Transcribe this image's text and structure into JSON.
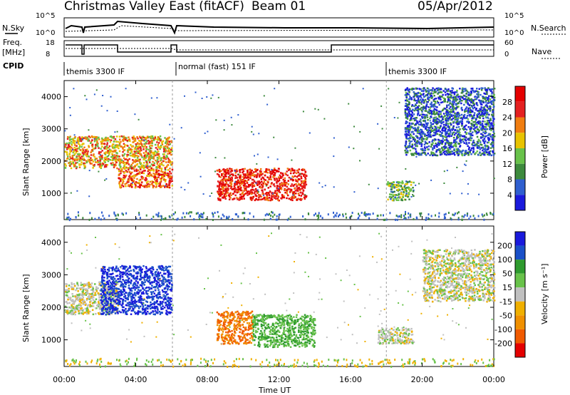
{
  "header": {
    "title": "Christmas Valley East (fitACF)",
    "beam": "Beam 01",
    "date": "05/Apr/2012"
  },
  "panels": {
    "nsky_label": "N.Sky",
    "nsearch_label": "N.Search",
    "freq_label_1": "Freq.",
    "freq_label_2": "[MHz]",
    "nave_label": "Nave",
    "cpid_label": "CPID",
    "nsky_ticks": [
      "10^5",
      "10^0"
    ],
    "nsearch_ticks": [
      "10^5",
      "10^0"
    ],
    "freq_ticks": [
      "18",
      "8"
    ],
    "nave_ticks": [
      "60",
      "0"
    ]
  },
  "cpid": [
    {
      "label": "themis 3300 IF",
      "start_hour": 0.0,
      "end_hour": 6.05
    },
    {
      "label": "normal (fast) 151 IF",
      "start_hour": 6.05,
      "end_hour": 18.0
    },
    {
      "label": "themis 3300 IF",
      "start_hour": 18.0,
      "end_hour": 24.0
    }
  ],
  "power_colorbar": {
    "label": "Power [dB]",
    "ticks": [
      "4",
      "8",
      "12",
      "16",
      "20",
      "24",
      "28"
    ],
    "colors": [
      "#1a1adc",
      "#2f5fcf",
      "#3d8a3d",
      "#68c24a",
      "#e8c300",
      "#f07d10",
      "#e42020",
      "#e40000"
    ]
  },
  "velocity_colorbar": {
    "label": "Velocity [m s⁻¹]",
    "ticks": [
      "-200",
      "-100",
      "-50",
      "-15",
      "15",
      "50",
      "100",
      "200"
    ],
    "colors": [
      "#e40000",
      "#f05a00",
      "#f09000",
      "#f0b000",
      "#c0c0c0",
      "#68c24a",
      "#2e9a2e",
      "#1a50c8",
      "#1a1adc"
    ]
  },
  "chart_data": [
    {
      "type": "heatmap",
      "title": "",
      "xlabel": "Time UT",
      "ylabel": "Slant Range [km]",
      "xlim": [
        "00:00",
        "24:00"
      ],
      "ylim": [
        180,
        4500
      ],
      "x_ticks": [
        "00:00",
        "04:00",
        "08:00",
        "12:00",
        "16:00",
        "20:00",
        "00:00"
      ],
      "y_ticks": [
        "1000",
        "2000",
        "3000",
        "4000"
      ],
      "colorbar_label": "Power [dB]",
      "regions": [
        {
          "t0": 0.0,
          "t1": 6.0,
          "r0": 1800,
          "r1": 2800,
          "value": 20
        },
        {
          "t0": 3.0,
          "t1": 6.0,
          "r0": 1200,
          "r1": 1800,
          "value": 24
        },
        {
          "t0": 8.5,
          "t1": 13.5,
          "r0": 800,
          "r1": 1800,
          "value": 28
        },
        {
          "t0": 18.0,
          "t1": 19.5,
          "r0": 800,
          "r1": 1400,
          "value": 12
        },
        {
          "t0": 19.0,
          "t1": 24.0,
          "r0": 2200,
          "r1": 4300,
          "value": 6
        }
      ]
    },
    {
      "type": "heatmap",
      "title": "",
      "xlabel": "Time UT",
      "ylabel": "Slant Range [km]",
      "xlim": [
        "00:00",
        "24:00"
      ],
      "ylim": [
        180,
        4500
      ],
      "x_ticks": [
        "00:00",
        "04:00",
        "08:00",
        "12:00",
        "16:00",
        "20:00",
        "00:00"
      ],
      "y_ticks": [
        "1000",
        "2000",
        "3000",
        "4000"
      ],
      "colorbar_label": "Velocity [m s⁻¹]",
      "regions": [
        {
          "t0": 0.0,
          "t1": 3.0,
          "r0": 1800,
          "r1": 2800,
          "value": 0
        },
        {
          "t0": 2.0,
          "t1": 6.0,
          "r0": 1800,
          "r1": 3300,
          "value": 200
        },
        {
          "t0": 8.5,
          "t1": 10.5,
          "r0": 900,
          "r1": 1900,
          "value": -100
        },
        {
          "t0": 10.5,
          "t1": 14.0,
          "r0": 800,
          "r1": 1800,
          "value": 50
        },
        {
          "t0": 17.5,
          "t1": 19.5,
          "r0": 900,
          "r1": 1400,
          "value": 0
        },
        {
          "t0": 20.0,
          "t1": 24.0,
          "r0": 2200,
          "r1": 3800,
          "value": 0
        }
      ]
    }
  ]
}
